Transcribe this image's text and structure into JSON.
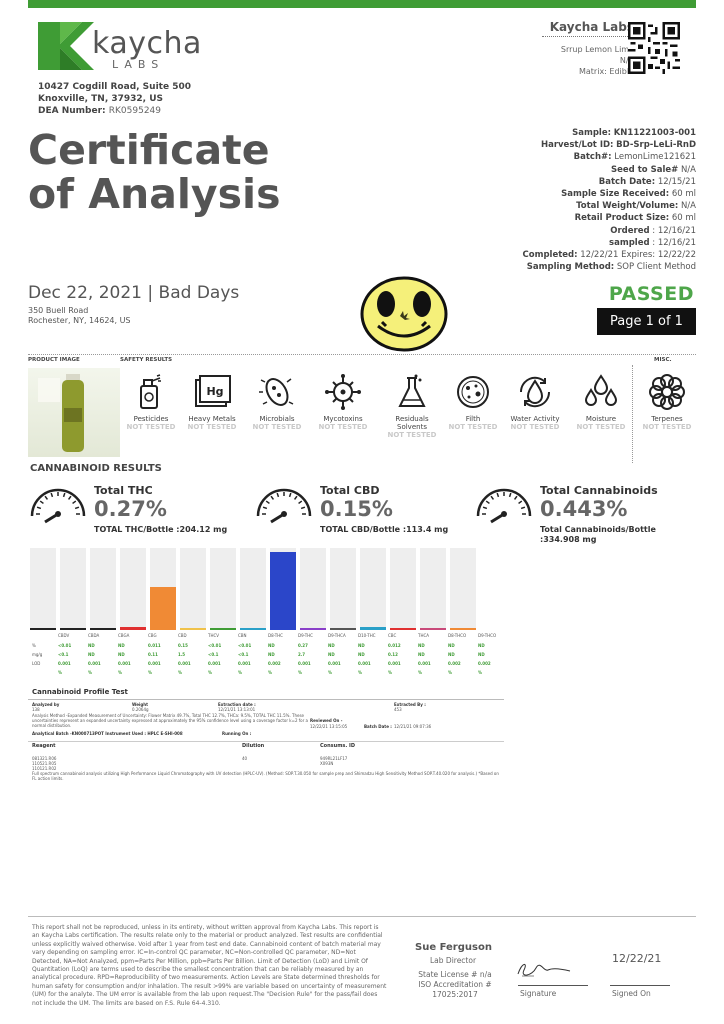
{
  "lab": {
    "logo_word": "kaycha",
    "logo_sub": "LABS",
    "address_line1": "10427 Cogdill Road, Suite 500",
    "address_line2": "Knoxville, TN, 37932, US",
    "dea_label": "DEA Number:",
    "dea_value": "RK0595249",
    "name": "Kaycha Labs",
    "product_name": "Srrup Lemon Lime",
    "product_na": "N/A",
    "matrix": "Matrix: Edible"
  },
  "title_line1": "Certificate",
  "title_line2": "of Analysis",
  "client": {
    "date_line": "Dec 22, 2021 | Bad Days",
    "address1": "350 Buell Road",
    "address2": "Rochester, NY, 14624, US"
  },
  "sample_info": [
    {
      "label": "Sample:",
      "value": "KN11221003-001",
      "bold_value": true
    },
    {
      "label": "Harvest/Lot ID:",
      "value": "BD-Srp-LeLi-RnD",
      "bold_value": true
    },
    {
      "label": "Batch#:",
      "value": "LemonLime121621",
      "bold_value": false
    },
    {
      "label": "Seed to Sale#",
      "value": "N/A",
      "bold_value": false
    },
    {
      "label": "Batch Date:",
      "value": "12/15/21",
      "bold_value": false
    },
    {
      "label": "Sample Size Received:",
      "value": "60 ml",
      "bold_value": false
    },
    {
      "label": "Total Weight/Volume:",
      "value": "N/A",
      "bold_value": false
    },
    {
      "label": "Retail Product Size:",
      "value": "60 ml",
      "bold_value": false
    },
    {
      "label": "Ordered",
      "value": ": 12/16/21",
      "bold_value": false
    },
    {
      "label": "sampled",
      "value": ": 12/16/21",
      "bold_value": false
    },
    {
      "label": "Completed:",
      "value": "12/22/21 Expires: 12/22/22",
      "bold_value": false
    },
    {
      "label": "Sampling Method:",
      "value": "SOP Client Method",
      "bold_value": false
    }
  ],
  "status": "PASSED",
  "page_label": "Page 1 of 1",
  "sections": {
    "product_image": "PRODUCT IMAGE",
    "safety_results": "SAFETY RESULTS",
    "misc": "MISC."
  },
  "safety": [
    {
      "name": "Pesticides",
      "status": "NOT TESTED",
      "icon": "spray-bottle-icon"
    },
    {
      "name": "Heavy Metals",
      "status": "NOT TESTED",
      "icon": "hg-element-icon"
    },
    {
      "name": "Microbials",
      "status": "NOT TESTED",
      "icon": "bacteria-icon"
    },
    {
      "name": "Mycotoxins",
      "status": "NOT TESTED",
      "icon": "virus-icon"
    },
    {
      "name": "Residuals Solvents",
      "status": "NOT TESTED",
      "icon": "flask-icon"
    },
    {
      "name": "Filth",
      "status": "NOT TESTED",
      "icon": "petri-dish-icon"
    },
    {
      "name": "Water Activity",
      "status": "NOT TESTED",
      "icon": "water-drop-cycle-icon"
    },
    {
      "name": "Moisture",
      "status": "NOT TESTED",
      "icon": "water-drops-icon"
    },
    {
      "name": "Terpenes",
      "status": "NOT TESTED",
      "icon": "terpene-flower-icon"
    }
  ],
  "cannabinoid_title": "CANNABINOID RESULTS",
  "gauges": [
    {
      "label": "Total THC",
      "value": "0.27%",
      "sub": "TOTAL THC/Bottle :204.12 mg",
      "sub2": ""
    },
    {
      "label": "Total CBD",
      "value": "0.15%",
      "sub": "TOTAL CBD/Bottle :113.4 mg",
      "sub2": ""
    },
    {
      "label": "Total Cannabinoids",
      "value": "0.443%",
      "sub": "Total Cannabinoids/Bottle",
      "sub2": ":334.908 mg"
    }
  ],
  "chart_data": {
    "type": "bar",
    "categories": [
      "CBDV",
      "CBDA",
      "CBGA",
      "CBG",
      "CBD",
      "THCV",
      "CBN",
      "D8-THC",
      "D9-THC",
      "D9-THCA",
      "D10-THC",
      "CBC",
      "THCA",
      "D8-THCO",
      "D9-THCO"
    ],
    "values": [
      0,
      0,
      0,
      0.011,
      0.15,
      0,
      0,
      0,
      0.27,
      0,
      0,
      0.012,
      0,
      0,
      0
    ],
    "colors": [
      "#222222",
      "#222222",
      "#222222",
      "#e03030",
      "#f08a35",
      "#f0c24a",
      "#3f9c35",
      "#2aa0c8",
      "#2b46c9",
      "#8a3fc9",
      "#555555",
      "#2aa0c8",
      "#e03030",
      "#c94a7a",
      "#f08a35"
    ],
    "ylim": [
      0,
      0.27
    ],
    "rows": {
      "percent_label": "%",
      "percent": [
        "<0.01",
        "ND",
        "ND",
        "0.011",
        "0.15",
        "<0.01",
        "<0.01",
        "ND",
        "0.27",
        "ND",
        "ND",
        "0.012",
        "ND",
        "ND",
        "ND"
      ],
      "mgg_label": "mg/g",
      "mgg": [
        "<0.1",
        "ND",
        "ND",
        "0.11",
        "1.5",
        "<0.1",
        "<0.1",
        "ND",
        "2.7",
        "ND",
        "ND",
        "0.12",
        "ND",
        "ND",
        "ND"
      ],
      "lod_label": "LOD",
      "lod": [
        "0.001",
        "0.001",
        "0.001",
        "0.001",
        "0.001",
        "0.001",
        "0.001",
        "0.002",
        "0.001",
        "0.001",
        "0.001",
        "0.001",
        "0.001",
        "0.002",
        "0.002"
      ],
      "unit": "%"
    }
  },
  "profile": {
    "title": "Cannabinoid Profile Test",
    "analyzed_by_label": "Analyzed by",
    "analyzed_by": "138",
    "weight_label": "Weight",
    "weight": "0.2064g",
    "extraction_label": "Extraction date :",
    "extraction_value": "12/21/21 13:13:01",
    "extracted_by_label": "Extracted By :",
    "extracted_by": "453",
    "method": "Analysis Method -Expanded Measurement of Uncertainty: Flower Matrix 49.7%, Total THC 12.7%, THCa: 9.5%, TOTAL THC 11.5%. These uncertainties represent an expanded uncertainty expressed at approximately the 95% confidence level using a coverage factor k=2 for a normal distribution.",
    "reviewed_label": "Reviewed On -",
    "reviewed_value": "12/22/21 13:15:05",
    "batch_date_label": "Batch Date :",
    "batch_date_value": "12/21/21 09:07:36",
    "analytical_batch": "Analytical Batch -KN000713POT Instrument Used : HPLC E-SHI-008",
    "running_on": "Running On :",
    "reagent_label": "Reagent",
    "reagent_values": "081321.R06 110521.R05 110121.R02",
    "dilution_label": "Dilution",
    "dilution_value": "40",
    "consums_label": "Consums. ID",
    "consums_value": "949RL21LF17 X093N",
    "footnote": "Full spectrum cannabinoid analysis utilizing High Performance Liquid Chromatography with UV detection (HPLC-UV). (Method: SOP.T.30.050 for sample prep and Shimadzu High Sensitivity Method SOP.T.40.020 for analysis.) *Based on FL action limits."
  },
  "disclaimer": "This report shall not be reproduced, unless in its entirety, without written approval from Kaycha Labs. This report is an Kaycha Labs certification. The results relate only to the material or product analyzed. Test results are confidential unless explicitly waived otherwise. Void after 1 year from test end date. Cannabinoid content of batch material may vary depending on sampling error. IC=In-control QC parameter, NC=Non-controlled QC parameter, ND=Not Detected, NA=Not Analyzed, ppm=Parts Per Million, ppb=Parts Per Billion. Limit of Detection (LoD) and Limit Of Quantitation (LoQ) are terms used to describe the smallest concentration that can be reliably measured by an analytical procedure. RPD=Reproducibility of two measurements. Action Levels are State determined thresholds for human safety for consumption and/or inhalation. The result >99% are variable based on uncertainty of measurement (UM) for the analyte. The UM error is available from the lab upon request.The \"Decision Rule\" for the pass/fail does not include the UM. The limits are based on F.S. Rule 64-4.310.",
  "signoff": {
    "name": "Sue Ferguson",
    "role": "Lab Director",
    "license": "State License # n/a",
    "iso1": "ISO Accreditation #",
    "iso2": "17025:2017",
    "signature_label": "Signature",
    "date": "12/22/21",
    "signed_on_label": "Signed On"
  },
  "colors": {
    "accent_green": "#3f9c35",
    "passed_green": "#4ea64a",
    "heading_gray": "#555555"
  }
}
